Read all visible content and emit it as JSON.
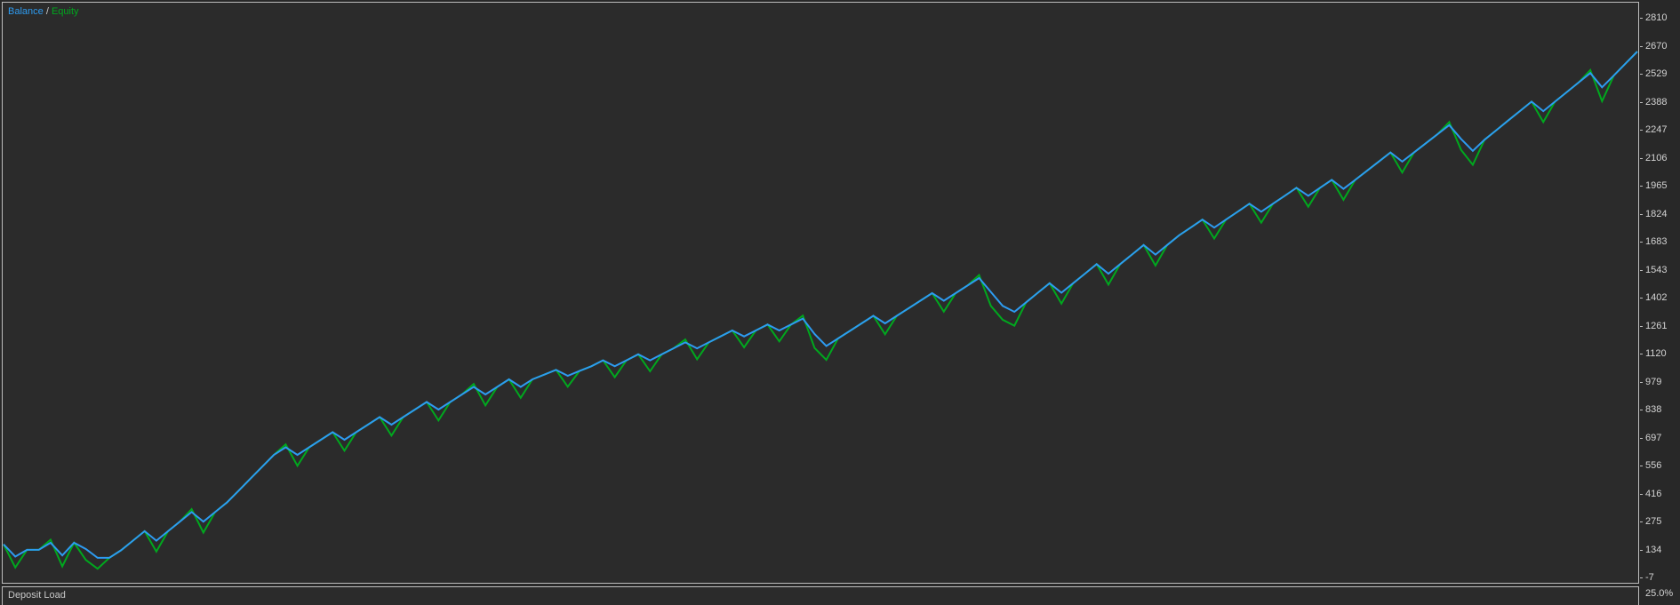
{
  "window": {
    "background": "#2b2b2b",
    "frame_color": "#bdbdbd"
  },
  "legend": {
    "balance_label": "Balance",
    "separator": " / ",
    "equity_label": "Equity"
  },
  "deposit_pane": {
    "label": "Deposit Load",
    "scale_top_label": "25.0%"
  },
  "chart_data": {
    "type": "line",
    "title": "",
    "xlabel": "",
    "ylabel": "",
    "ylim": [
      -7,
      2810
    ],
    "grid": false,
    "legend_position": "top-left",
    "y_axis_ticks": [
      "2810",
      "2670",
      "2529",
      "2388",
      "2247",
      "2106",
      "1965",
      "1824",
      "1683",
      "1543",
      "1402",
      "1261",
      "1120",
      "979",
      "838",
      "697",
      "556",
      "416",
      "275",
      "134",
      "-7"
    ],
    "series": [
      {
        "name": "Balance",
        "color": "#2d9bf0",
        "values": [
          160,
          98,
          132,
          132,
          168,
          104,
          168,
          136,
          92,
          92,
          130,
          178,
          226,
          178,
          226,
          274,
          322,
          274,
          322,
          370,
          430,
          490,
          550,
          610,
          648,
          610,
          648,
          686,
          724,
          686,
          724,
          762,
          800,
          762,
          800,
          838,
          876,
          838,
          876,
          914,
          952,
          914,
          952,
          990,
          952,
          990,
          1014,
          1038,
          1008,
          1032,
          1056,
          1086,
          1056,
          1086,
          1116,
          1086,
          1116,
          1146,
          1176,
          1146,
          1176,
          1206,
          1236,
          1206,
          1236,
          1266,
          1236,
          1266,
          1296,
          1218,
          1158,
          1196,
          1234,
          1272,
          1310,
          1272,
          1310,
          1348,
          1386,
          1424,
          1386,
          1424,
          1462,
          1500,
          1430,
          1360,
          1330,
          1378,
          1426,
          1474,
          1426,
          1474,
          1522,
          1570,
          1522,
          1570,
          1618,
          1666,
          1618,
          1666,
          1714,
          1754,
          1794,
          1754,
          1794,
          1834,
          1874,
          1834,
          1874,
          1914,
          1954,
          1914,
          1954,
          1994,
          1949,
          1994,
          2040,
          2086,
          2132,
          2086,
          2132,
          2178,
          2224,
          2270,
          2200,
          2140,
          2196,
          2244,
          2292,
          2340,
          2388,
          2340,
          2388,
          2436,
          2484,
          2532,
          2460,
          2520,
          2580,
          2640
        ]
      },
      {
        "name": "Equity",
        "color": "#00a81e",
        "values": [
          160,
          43,
          132,
          132,
          183,
          49,
          168,
          81,
          37,
          92,
          130,
          178,
          226,
          123,
          226,
          274,
          337,
          219,
          322,
          370,
          430,
          490,
          550,
          610,
          663,
          555,
          648,
          686,
          724,
          631,
          724,
          762,
          800,
          707,
          800,
          838,
          876,
          783,
          876,
          914,
          967,
          859,
          952,
          990,
          897,
          990,
          1014,
          1038,
          953,
          1032,
          1056,
          1086,
          1001,
          1086,
          1116,
          1031,
          1116,
          1146,
          1191,
          1091,
          1176,
          1206,
          1236,
          1151,
          1236,
          1266,
          1181,
          1266,
          1311,
          1148,
          1088,
          1196,
          1234,
          1272,
          1310,
          1217,
          1310,
          1348,
          1386,
          1424,
          1331,
          1424,
          1462,
          1515,
          1360,
          1290,
          1260,
          1378,
          1426,
          1474,
          1371,
          1474,
          1522,
          1570,
          1467,
          1570,
          1618,
          1666,
          1563,
          1666,
          1714,
          1754,
          1794,
          1699,
          1794,
          1834,
          1874,
          1779,
          1874,
          1914,
          1954,
          1859,
          1954,
          1994,
          1894,
          1994,
          2040,
          2086,
          2132,
          2031,
          2132,
          2178,
          2224,
          2285,
          2145,
          2070,
          2196,
          2244,
          2292,
          2340,
          2388,
          2285,
          2388,
          2436,
          2484,
          2547,
          2390,
          2520,
          2580,
          2640
        ]
      }
    ]
  }
}
